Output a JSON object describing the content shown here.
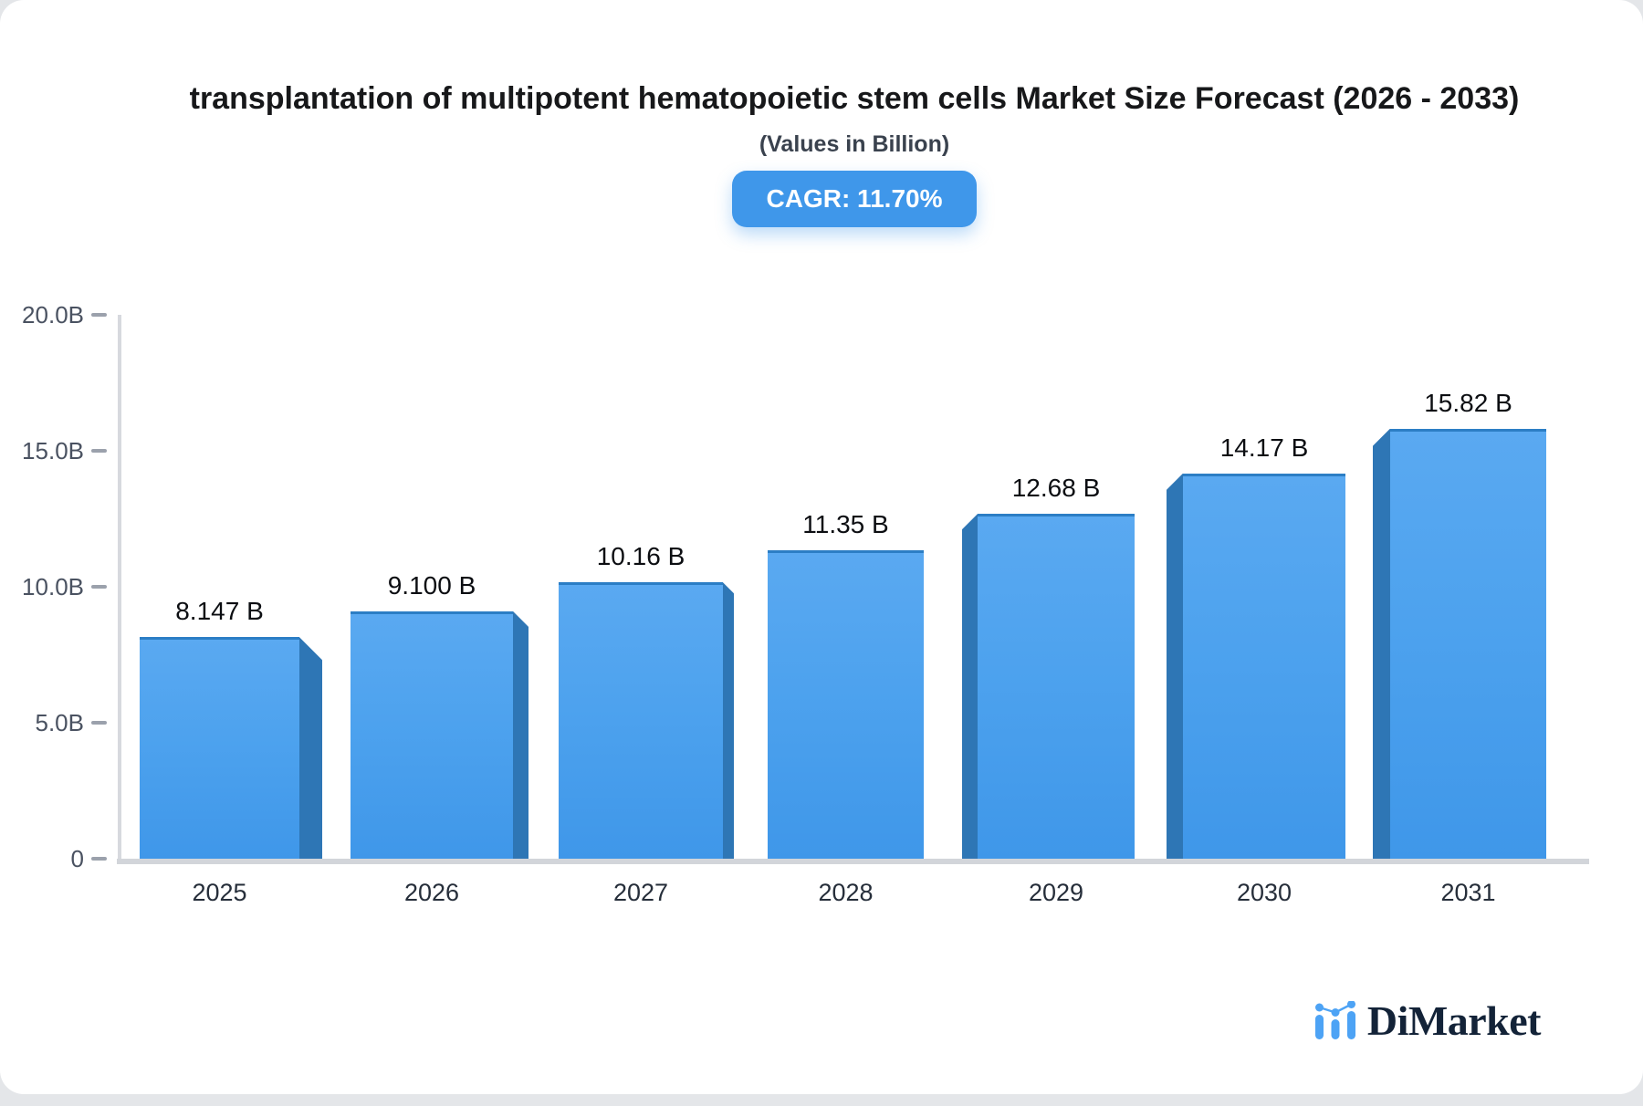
{
  "header": {
    "title": "transplantation of multipotent hematopoietic stem cells Market Size Forecast (2026 - 2033)",
    "subtitle": "(Values in Billion)",
    "cagr_badge": "CAGR: 11.70%"
  },
  "logo": {
    "text": "DiMarket",
    "icon": "bar-chart-logo-icon",
    "icon_color": "#4da3f5",
    "text_color": "#132338"
  },
  "chart_data": {
    "type": "bar",
    "title": "transplantation of multipotent hematopoietic stem cells Market Size Forecast (2026 - 2033)",
    "subtitle": "(Values in Billion)",
    "cagr_percent": 11.7,
    "categories": [
      "2025",
      "2026",
      "2027",
      "2028",
      "2029",
      "2030",
      "2031"
    ],
    "values": [
      8.147,
      9.1,
      10.16,
      11.35,
      12.68,
      14.17,
      15.82
    ],
    "value_labels": [
      "8.147 B",
      "9.100 B",
      "10.16 B",
      "11.35 B",
      "12.68 B",
      "14.17 B",
      "15.82 B"
    ],
    "xlabel": "",
    "ylabel": "",
    "ylim": [
      0,
      20
    ],
    "yticks": [
      {
        "label": "20.0B",
        "value": 20
      },
      {
        "label": "15.0B",
        "value": 15
      },
      {
        "label": "10.0B",
        "value": 10
      },
      {
        "label": "5.0B",
        "value": 5
      },
      {
        "label": "0",
        "value": 0
      }
    ],
    "grid": false,
    "legend": false,
    "bar_color_top": "#5aa9f1",
    "bar_color_bottom": "#3f97e9",
    "bar_side_color": "#2e76b5",
    "bar_top_edge_color": "#2c7ec5",
    "axis_color": "#d2d5da",
    "badge_color": "#3f97ea"
  }
}
